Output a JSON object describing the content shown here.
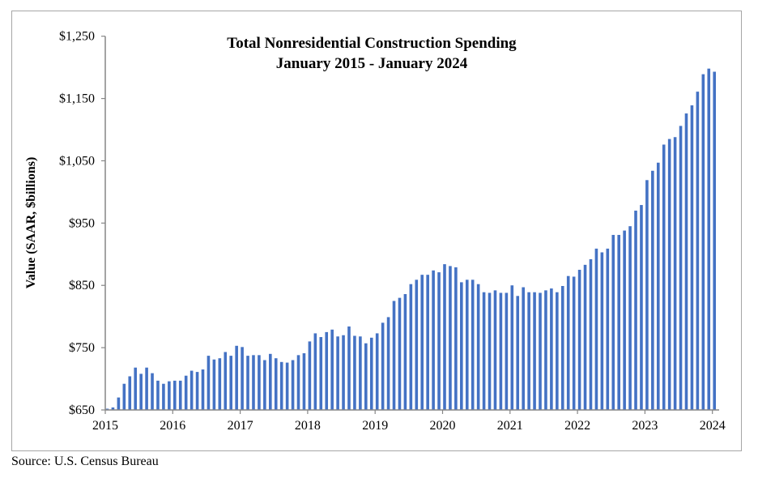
{
  "chart_data": {
    "type": "bar",
    "title": "Total Nonresidential Construction Spending",
    "subtitle": "January 2015 - January 2024",
    "ylabel": "Value (SAAR, $billions)",
    "xlabel": "",
    "ylim": [
      650,
      1250
    ],
    "yticks": [
      650,
      750,
      850,
      950,
      1050,
      1150,
      1250
    ],
    "ytick_labels": [
      "$650",
      "$750",
      "$850",
      "$950",
      "$1,050",
      "$1,150",
      "$1,250"
    ],
    "xtick_labels": [
      "2015",
      "2016",
      "2017",
      "2018",
      "2019",
      "2020",
      "2021",
      "2022",
      "2023",
      "2024"
    ],
    "grid": false,
    "legend": "none",
    "bar_color": "#4472c4",
    "start": "January 2015",
    "end": "January 2024",
    "frequency": "monthly",
    "values": [
      652,
      654,
      670,
      692,
      704,
      718,
      708,
      718,
      709,
      697,
      692,
      696,
      697,
      697,
      705,
      713,
      711,
      715,
      737,
      731,
      733,
      743,
      737,
      753,
      751,
      737,
      738,
      738,
      730,
      740,
      733,
      727,
      726,
      730,
      738,
      741,
      760,
      773,
      767,
      775,
      779,
      768,
      770,
      784,
      769,
      768,
      757,
      766,
      773,
      790,
      799,
      825,
      830,
      836,
      852,
      859,
      867,
      867,
      874,
      871,
      884,
      881,
      879,
      855,
      859,
      859,
      852,
      839,
      838,
      842,
      838,
      838,
      850,
      833,
      847,
      839,
      839,
      838,
      842,
      845,
      839,
      849,
      865,
      864,
      875,
      883,
      892,
      909,
      903,
      909,
      931,
      931,
      938,
      945,
      970,
      979,
      1019,
      1034,
      1047,
      1076,
      1085,
      1088,
      1106,
      1126,
      1139,
      1161,
      1189,
      1198,
      1193
    ]
  },
  "source": "Source:  U.S. Census Bureau"
}
